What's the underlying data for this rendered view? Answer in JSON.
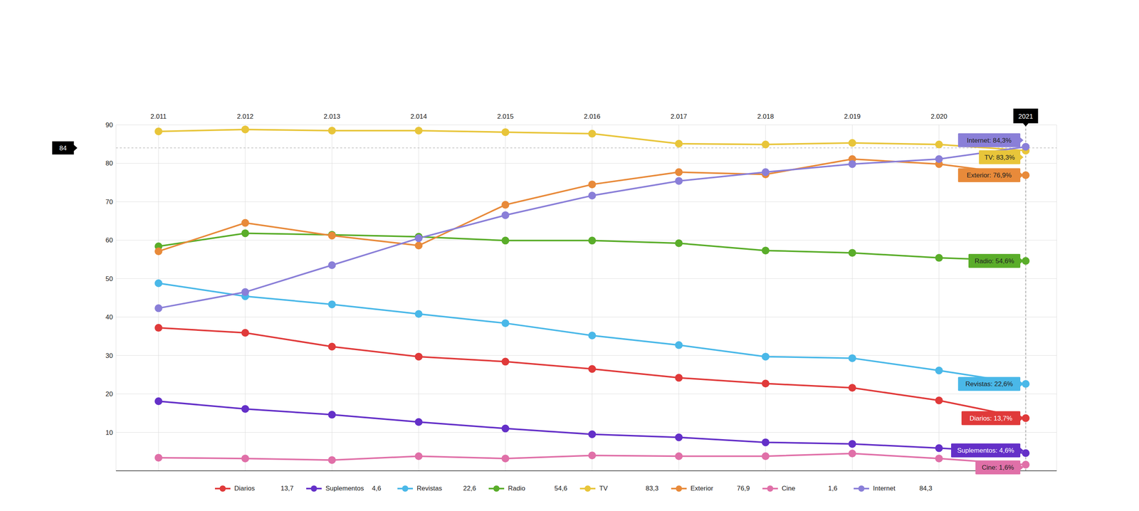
{
  "chart_data": {
    "type": "line",
    "categories": [
      "2.011",
      "2.012",
      "2.013",
      "2.014",
      "2.015",
      "2.016",
      "2.017",
      "2.018",
      "2.019",
      "2.020",
      "2021"
    ],
    "ylim": [
      0,
      90
    ],
    "yticks": [
      10,
      20,
      30,
      40,
      50,
      60,
      70,
      80,
      90
    ],
    "grid": true,
    "legend": "bottom",
    "marker": "circle",
    "series": [
      {
        "name": "Diarios",
        "color": "#e03a3a",
        "values": [
          37.2,
          35.9,
          32.3,
          29.7,
          28.4,
          26.5,
          24.2,
          22.7,
          21.6,
          18.3,
          13.7
        ],
        "end_label": "Diarios: 13,7%",
        "legend_value": "13,7"
      },
      {
        "name": "Suplementos",
        "color": "#6430c8",
        "values": [
          18.1,
          16.1,
          14.6,
          12.7,
          11.0,
          9.5,
          8.7,
          7.4,
          7.0,
          5.9,
          4.6
        ],
        "end_label": "Suplementos: 4,6%",
        "legend_value": "4,6"
      },
      {
        "name": "Revistas",
        "color": "#4ab8e8",
        "values": [
          48.8,
          45.4,
          43.3,
          40.8,
          38.4,
          35.2,
          32.7,
          29.7,
          29.3,
          26.1,
          22.6
        ],
        "end_label": "Revistas: 22,6%",
        "legend_value": "22,6"
      },
      {
        "name": "Radio",
        "color": "#5aad2a",
        "values": [
          58.4,
          61.8,
          61.4,
          60.9,
          59.9,
          59.9,
          59.2,
          57.3,
          56.7,
          55.4,
          54.6
        ],
        "end_label": "Radio: 54,6%",
        "legend_value": "54,6"
      },
      {
        "name": "TV",
        "color": "#e8c53a",
        "values": [
          88.3,
          88.8,
          88.5,
          88.5,
          88.1,
          87.7,
          85.1,
          84.9,
          85.3,
          84.9,
          83.3
        ],
        "end_label": "TV: 83,3%",
        "legend_value": "83,3"
      },
      {
        "name": "Exterior",
        "color": "#e88a3a",
        "values": [
          57.1,
          64.5,
          61.2,
          58.6,
          69.2,
          74.5,
          77.7,
          77.1,
          81.1,
          79.8,
          76.9
        ],
        "end_label": "Exterior: 76,9%",
        "legend_value": "76,9"
      },
      {
        "name": "Cine",
        "color": "#e070a8",
        "values": [
          3.4,
          3.2,
          2.8,
          3.8,
          3.2,
          4.0,
          3.8,
          3.8,
          4.5,
          3.2,
          1.6
        ],
        "end_label": "Cine: 1,6%",
        "legend_value": "1,6"
      },
      {
        "name": "Internet",
        "color": "#8a7fd8",
        "values": [
          42.3,
          46.5,
          53.5,
          60.5,
          66.5,
          71.6,
          75.4,
          77.7,
          79.8,
          81.1,
          84.3
        ],
        "end_label": "Internet: 84,3%",
        "legend_value": "84,3"
      }
    ],
    "annotations": [
      {
        "type": "hline",
        "y": 84,
        "label": "84"
      },
      {
        "type": "vline",
        "x": "2021"
      }
    ]
  }
}
